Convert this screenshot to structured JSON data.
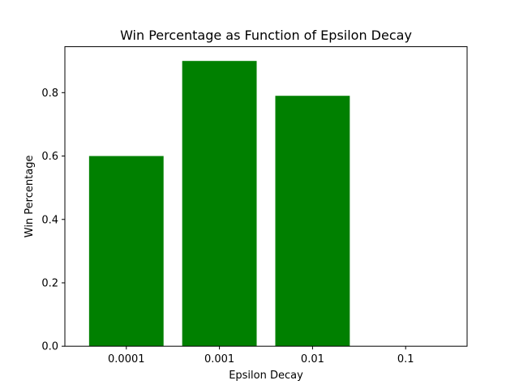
{
  "chart_data": {
    "type": "bar",
    "title": "Win Percentage as Function of Epsilon Decay",
    "xlabel": "Epsilon Decay",
    "ylabel": "Win Percentage",
    "categories": [
      "0.0001",
      "0.001",
      "0.01",
      "0.1"
    ],
    "values": [
      0.6,
      0.9,
      0.79,
      0.0
    ],
    "ylim": [
      0,
      0.945
    ],
    "yticks": [
      0.0,
      0.2,
      0.4,
      0.6,
      0.8
    ],
    "ytick_labels": [
      "0.0",
      "0.2",
      "0.4",
      "0.6",
      "0.8"
    ],
    "grid": false,
    "legend": "none",
    "bar_color": "#008000"
  }
}
